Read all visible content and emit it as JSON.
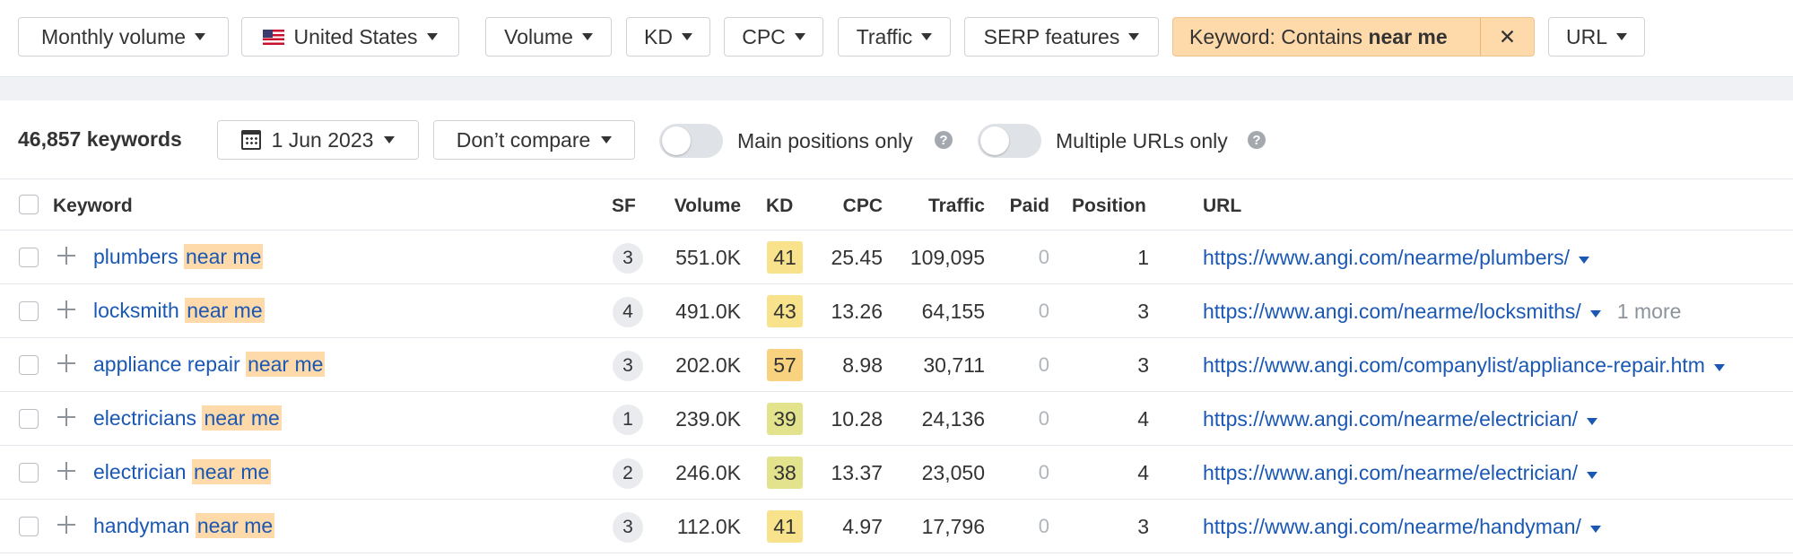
{
  "filters": {
    "monthly_volume": "Monthly volume",
    "country": "United States",
    "volume": "Volume",
    "kd": "KD",
    "cpc": "CPC",
    "traffic": "Traffic",
    "serp_features": "SERP features",
    "keyword_filter_prefix": "Keyword: Contains ",
    "keyword_filter_value": "near me",
    "keyword_filter_close": "✕",
    "url": "URL"
  },
  "controls": {
    "keyword_count": "46,857 keywords",
    "date": "1 Jun 2023",
    "compare": "Don’t compare",
    "main_positions_label": "Main positions only",
    "multiple_urls_label": "Multiple URLs only",
    "help_glyph": "?"
  },
  "columns": {
    "keyword": "Keyword",
    "sf": "SF",
    "volume": "Volume",
    "kd": "KD",
    "cpc": "CPC",
    "traffic": "Traffic",
    "paid": "Paid",
    "position": "Position",
    "url": "URL"
  },
  "kd_colors": {
    "low_moderate": "#e3e38e",
    "moderate": "#f8e38c",
    "high": "#f8d27f"
  },
  "rows": [
    {
      "keyword": "plumbers",
      "highlight": "near me",
      "sf": "3",
      "volume": "551.0K",
      "kd": "41",
      "kd_color": "#f8e38c",
      "cpc": "25.45",
      "traffic": "109,095",
      "paid": "0",
      "position": "1",
      "url": "https://www.angi.com/nearme/plumbers/",
      "more": ""
    },
    {
      "keyword": "locksmith",
      "highlight": "near me",
      "sf": "4",
      "volume": "491.0K",
      "kd": "43",
      "kd_color": "#f8e38c",
      "cpc": "13.26",
      "traffic": "64,155",
      "paid": "0",
      "position": "3",
      "url": "https://www.angi.com/nearme/locksmiths/",
      "more": "1 more"
    },
    {
      "keyword": "appliance repair",
      "highlight": "near me",
      "sf": "3",
      "volume": "202.0K",
      "kd": "57",
      "kd_color": "#f8d27f",
      "cpc": "8.98",
      "traffic": "30,711",
      "paid": "0",
      "position": "3",
      "url": "https://www.angi.com/companylist/appliance-repair.htm",
      "more": ""
    },
    {
      "keyword": "electricians",
      "highlight": "near me",
      "sf": "1",
      "volume": "239.0K",
      "kd": "39",
      "kd_color": "#e3e38e",
      "cpc": "10.28",
      "traffic": "24,136",
      "paid": "0",
      "position": "4",
      "url": "https://www.angi.com/nearme/electrician/",
      "more": ""
    },
    {
      "keyword": "electrician",
      "highlight": "near me",
      "sf": "2",
      "volume": "246.0K",
      "kd": "38",
      "kd_color": "#e3e38e",
      "cpc": "13.37",
      "traffic": "23,050",
      "paid": "0",
      "position": "4",
      "url": "https://www.angi.com/nearme/electrician/",
      "more": ""
    },
    {
      "keyword": "handyman",
      "highlight": "near me",
      "sf": "3",
      "volume": "112.0K",
      "kd": "41",
      "kd_color": "#f8e38c",
      "cpc": "4.97",
      "traffic": "17,796",
      "paid": "0",
      "position": "3",
      "url": "https://www.angi.com/nearme/handyman/",
      "more": ""
    }
  ]
}
